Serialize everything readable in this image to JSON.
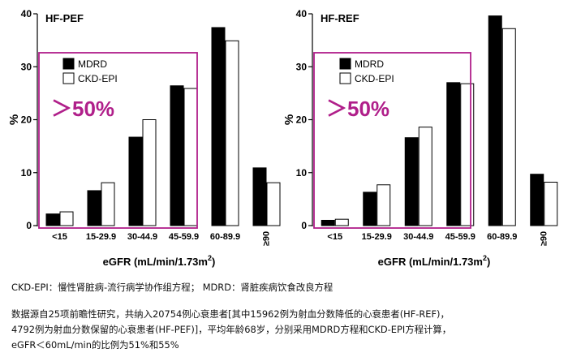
{
  "chart_data": [
    {
      "type": "bar",
      "title": "HF-PEF",
      "xlabel": "eGFR (mL/min/1.73m2)",
      "ylabel": "%",
      "ylim": [
        0,
        40
      ],
      "yticks": [
        "0",
        "10",
        "20",
        "30",
        "40"
      ],
      "categories": [
        "<15",
        "15-29.9",
        "30-44.9",
        "45-59.9",
        "60-89.9",
        "≥90"
      ],
      "series": [
        {
          "name": "MDRD",
          "color": "#000000",
          "values": [
            2.2,
            6.6,
            16.7,
            26.4,
            37.4,
            10.9
          ]
        },
        {
          "name": "CKD-EPI",
          "color": "#ffffff",
          "values": [
            2.6,
            8.1,
            20.0,
            25.9,
            34.9,
            8.1
          ]
        }
      ],
      "legend_position": "top-left",
      "highlight": {
        "text": "＞50%",
        "color": "#b01f8a",
        "categories": [
          "<15",
          "15-29.9",
          "30-44.9",
          "45-59.9"
        ]
      }
    },
    {
      "type": "bar",
      "title": "HF-REF",
      "xlabel": "eGFR (mL/min/1.73m2)",
      "ylabel": "%",
      "ylim": [
        0,
        40
      ],
      "yticks": [
        "0",
        "10",
        "20",
        "30",
        "40"
      ],
      "categories": [
        "<15",
        "15-29.9",
        "30-44.9",
        "45-59.9",
        "60-89.9",
        "≥90"
      ],
      "series": [
        {
          "name": "MDRD",
          "color": "#000000",
          "values": [
            1.0,
            6.3,
            16.6,
            27.0,
            39.6,
            9.7
          ]
        },
        {
          "name": "CKD-EPI",
          "color": "#ffffff",
          "values": [
            1.2,
            7.7,
            18.6,
            26.8,
            37.2,
            8.2
          ]
        }
      ],
      "legend_position": "top-left",
      "highlight": {
        "text": "＞50%",
        "color": "#b01f8a",
        "categories": [
          "<15",
          "15-29.9",
          "30-44.9",
          "45-59.9"
        ]
      }
    }
  ],
  "notes": {
    "abbreviations": "CKD-EPI：慢性肾脏病-流行病学协作组方程；  MDRD：肾脏疾病饮食改良方程",
    "description_lines": [
      "数据源自25项前瞻性研究，共纳入20754例心衰患者[其中15962例为射血分数降低的心衰患者(HF-REF)，",
      "4792例为射血分数保留的心衰患者(HF-PEF)]，平均年龄68岁，分别采用MDRD方程和CKD-EPI方程计算，",
      "eGFR＜60mL/min的比例为51%和55%"
    ]
  }
}
